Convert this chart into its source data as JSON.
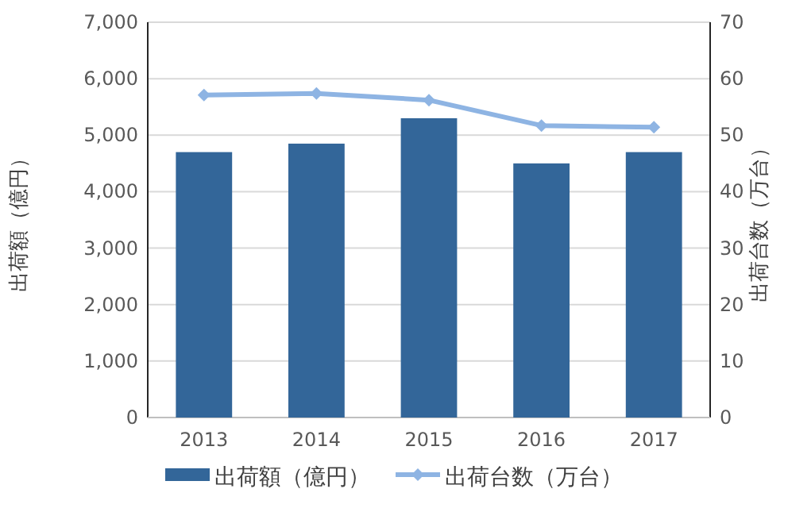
{
  "chart_data": {
    "type": "bar",
    "categories": [
      "2013",
      "2014",
      "2015",
      "2016",
      "2017"
    ],
    "series": [
      {
        "name": "出荷額（億円）",
        "color": "#336699",
        "values": [
          4700,
          4850,
          5300,
          4500,
          4700
        ]
      },
      {
        "name": "出荷台数（万台）",
        "type": "line",
        "axis": "y2",
        "color": "#8eb4e3",
        "marker": "diamond",
        "values": [
          57.1,
          57.4,
          56.2,
          51.7,
          51.4
        ]
      }
    ],
    "ylabel": "出荷額（億円）",
    "y2label": "出荷台数（万台）",
    "ylim": [
      0,
      7000
    ],
    "yticks": [
      {
        "value": 0,
        "label": "0"
      },
      {
        "value": 1000,
        "label": "1,000"
      },
      {
        "value": 2000,
        "label": "2,000"
      },
      {
        "value": 3000,
        "label": "3,000"
      },
      {
        "value": 4000,
        "label": "4,000"
      },
      {
        "value": 5000,
        "label": "5,000"
      },
      {
        "value": 6000,
        "label": "6,000"
      },
      {
        "value": 7000,
        "label": "7,000"
      }
    ],
    "y2lim": [
      0,
      70
    ],
    "y2ticks": [
      0,
      10,
      20,
      30,
      40,
      50,
      60,
      70
    ],
    "grid": "y",
    "legend": "bottom"
  }
}
